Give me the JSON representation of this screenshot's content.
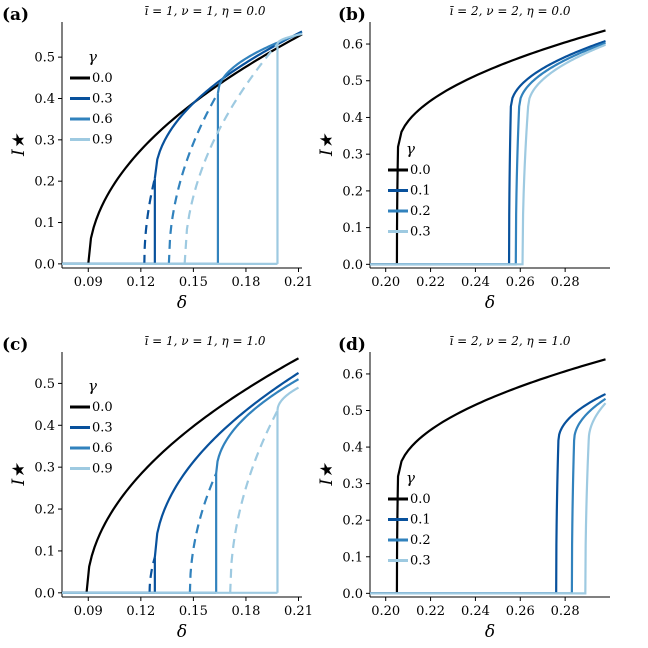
{
  "chart_data": [
    {
      "type": "line",
      "panel_label": "(a)",
      "title": "ī = 1,  ν = 1,  η = 0.0",
      "xlabel": "δ",
      "ylabel": "I★",
      "xlim": [
        0.075,
        0.212
      ],
      "ylim": [
        -0.01,
        0.585
      ],
      "xticks": [
        0.09,
        0.12,
        0.15,
        0.18,
        0.21
      ],
      "xtick_labels": [
        "0.09",
        "0.12",
        "0.15",
        "0.18",
        "0.21"
      ],
      "yticks": [
        0.0,
        0.1,
        0.2,
        0.3,
        0.4,
        0.5
      ],
      "ytick_labels": [
        "0.0",
        "0.1",
        "0.2",
        "0.3",
        "0.4",
        "0.5"
      ],
      "legend_title": "γ",
      "legend_position": "top-left",
      "series": [
        {
          "name": "0.0",
          "color": "#000000",
          "threshold": 0.09,
          "x_end": 0.212,
          "y_end": 0.555,
          "x_jump": 0.09,
          "y_jump": 0.0,
          "x_fold": 0.09
        },
        {
          "name": "0.3",
          "color": "#08519c",
          "threshold": 0.09,
          "x_end": 0.212,
          "y_end": 0.562,
          "x_jump": 0.128,
          "y_jump": 0.207,
          "x_fold": 0.122
        },
        {
          "name": "0.6",
          "color": "#3182bd",
          "threshold": 0.09,
          "x_end": 0.212,
          "y_end": 0.558,
          "x_jump": 0.164,
          "y_jump": 0.413,
          "x_fold": 0.136
        },
        {
          "name": "0.9",
          "color": "#9ecae1",
          "threshold": 0.09,
          "x_end": 0.212,
          "y_end": 0.556,
          "x_jump": 0.198,
          "y_jump": 0.532,
          "x_fold": 0.145
        }
      ]
    },
    {
      "type": "line",
      "panel_label": "(b)",
      "title": "ī = 2,  ν = 2,  η = 0.0",
      "xlabel": "δ",
      "ylabel": "I★",
      "xlim": [
        0.193,
        0.3
      ],
      "ylim": [
        -0.01,
        0.66
      ],
      "xticks": [
        0.2,
        0.22,
        0.24,
        0.26,
        0.28
      ],
      "xtick_labels": [
        "0.20",
        "0.22",
        "0.24",
        "0.26",
        "0.28"
      ],
      "yticks": [
        0.0,
        0.1,
        0.2,
        0.3,
        0.4,
        0.5,
        0.6
      ],
      "ytick_labels": [
        "0.0",
        "0.1",
        "0.2",
        "0.3",
        "0.4",
        "0.5",
        "0.6"
      ],
      "legend_title": "γ",
      "legend_position": "center-left",
      "series": [
        {
          "name": "0.0",
          "color": "#000000",
          "threshold": 0.205,
          "x_end": 0.298,
          "y_end": 0.637,
          "x_jump": 0.2055,
          "y_jump": 0.32
        },
        {
          "name": "0.1",
          "color": "#08519c",
          "threshold": 0.255,
          "x_end": 0.298,
          "y_end": 0.608,
          "x_jump": 0.2558,
          "y_jump": 0.43
        },
        {
          "name": "0.2",
          "color": "#3182bd",
          "threshold": 0.258,
          "x_end": 0.298,
          "y_end": 0.603,
          "x_jump": 0.2595,
          "y_jump": 0.43
        },
        {
          "name": "0.3",
          "color": "#9ecae1",
          "threshold": 0.261,
          "x_end": 0.298,
          "y_end": 0.598,
          "x_jump": 0.2635,
          "y_jump": 0.43
        }
      ]
    },
    {
      "type": "line",
      "panel_label": "(c)",
      "title": "ī = 1,  ν = 1,  η = 1.0",
      "xlabel": "δ",
      "ylabel": "I★",
      "xlim": [
        0.075,
        0.212
      ],
      "ylim": [
        -0.01,
        0.575
      ],
      "xticks": [
        0.09,
        0.12,
        0.15,
        0.18,
        0.21
      ],
      "xtick_labels": [
        "0.09",
        "0.12",
        "0.15",
        "0.18",
        "0.21"
      ],
      "yticks": [
        0.0,
        0.1,
        0.2,
        0.3,
        0.4,
        0.5
      ],
      "ytick_labels": [
        "0.0",
        "0.1",
        "0.2",
        "0.3",
        "0.4",
        "0.5"
      ],
      "legend_title": "γ",
      "legend_position": "top-left",
      "series": [
        {
          "name": "0.0",
          "color": "#000000",
          "threshold": 0.089,
          "x_end": 0.21,
          "y_end": 0.56,
          "x_jump": 0.089,
          "y_jump": 0.0,
          "x_fold": 0.089
        },
        {
          "name": "0.3",
          "color": "#08519c",
          "threshold": 0.125,
          "x_end": 0.21,
          "y_end": 0.525,
          "x_jump": 0.128,
          "y_jump": 0.085,
          "x_fold": 0.125
        },
        {
          "name": "0.6",
          "color": "#3182bd",
          "threshold": 0.148,
          "x_end": 0.21,
          "y_end": 0.51,
          "x_jump": 0.163,
          "y_jump": 0.285,
          "x_fold": 0.148
        },
        {
          "name": "0.9",
          "color": "#9ecae1",
          "threshold": 0.171,
          "x_end": 0.21,
          "y_end": 0.49,
          "x_jump": 0.198,
          "y_jump": 0.435,
          "x_fold": 0.171
        }
      ]
    },
    {
      "type": "line",
      "panel_label": "(d)",
      "title": "ī = 2,  ν = 2,  η = 1.0",
      "xlabel": "δ",
      "ylabel": "I★",
      "xlim": [
        0.193,
        0.3
      ],
      "ylim": [
        -0.01,
        0.66
      ],
      "xticks": [
        0.2,
        0.22,
        0.24,
        0.26,
        0.28
      ],
      "xtick_labels": [
        "0.20",
        "0.22",
        "0.24",
        "0.26",
        "0.28"
      ],
      "yticks": [
        0.0,
        0.1,
        0.2,
        0.3,
        0.4,
        0.5,
        0.6
      ],
      "ytick_labels": [
        "0.0",
        "0.1",
        "0.2",
        "0.3",
        "0.4",
        "0.5",
        "0.6"
      ],
      "legend_title": "γ",
      "legend_position": "center-left",
      "series": [
        {
          "name": "0.0",
          "color": "#000000",
          "threshold": 0.205,
          "x_end": 0.298,
          "y_end": 0.64,
          "x_jump": 0.2055,
          "y_jump": 0.32
        },
        {
          "name": "0.1",
          "color": "#08519c",
          "threshold": 0.276,
          "x_end": 0.298,
          "y_end": 0.545,
          "x_jump": 0.277,
          "y_jump": 0.418
        },
        {
          "name": "0.2",
          "color": "#3182bd",
          "threshold": 0.283,
          "x_end": 0.298,
          "y_end": 0.532,
          "x_jump": 0.284,
          "y_jump": 0.418
        },
        {
          "name": "0.3",
          "color": "#9ecae1",
          "threshold": 0.289,
          "x_end": 0.298,
          "y_end": 0.52,
          "x_jump": 0.2905,
          "y_jump": 0.418
        }
      ]
    }
  ]
}
